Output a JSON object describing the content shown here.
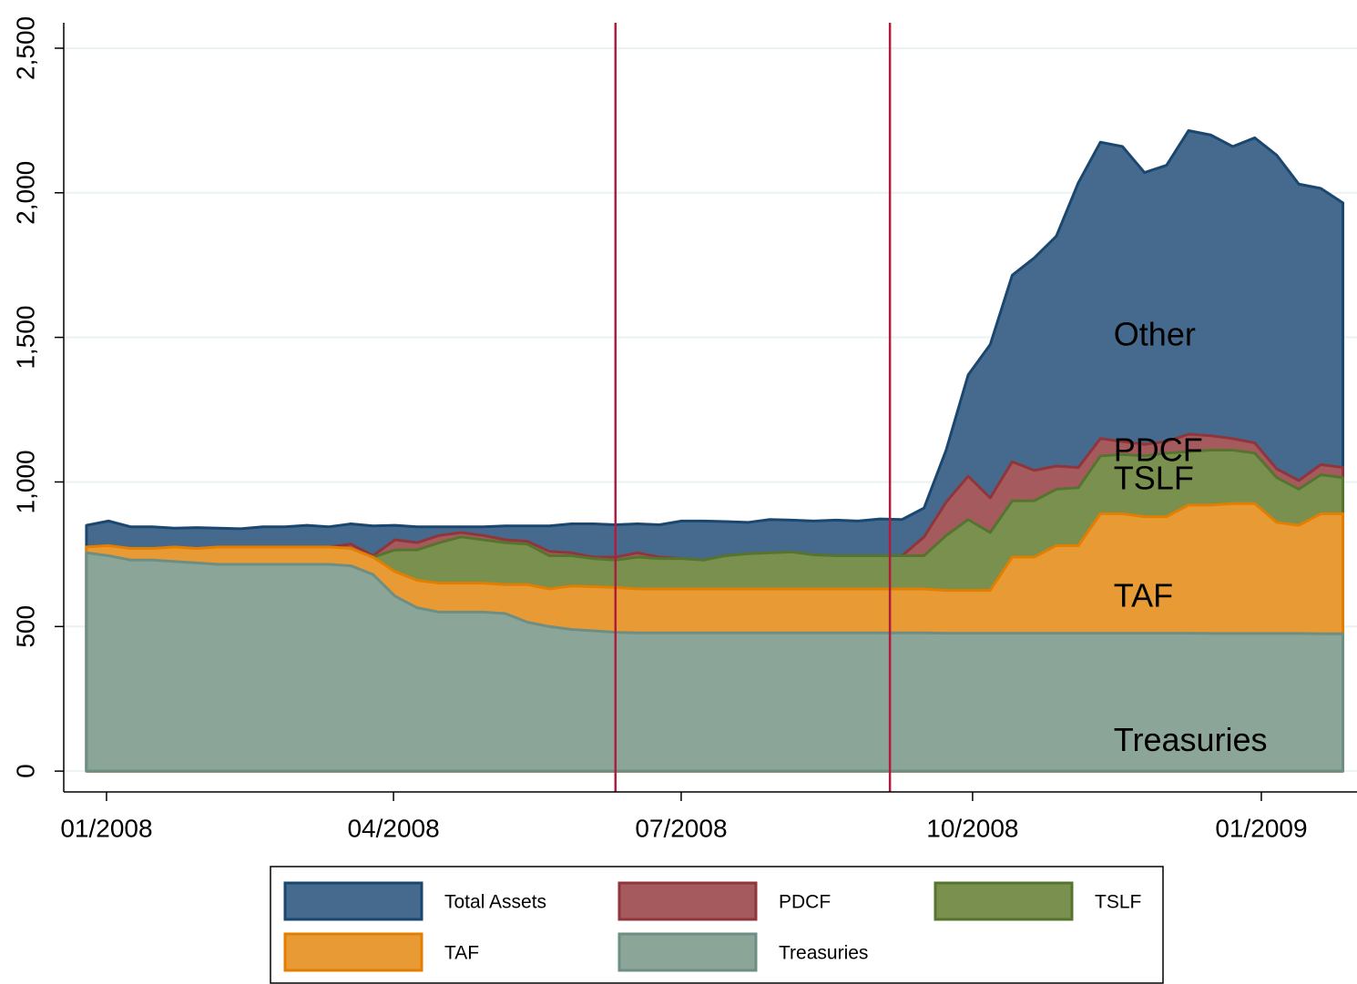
{
  "chart_data": {
    "type": "area",
    "x": [
      0,
      1,
      2,
      3,
      4,
      5,
      6,
      7,
      8,
      9,
      10,
      11,
      12,
      13,
      14,
      15,
      16,
      17,
      18,
      19,
      20,
      21,
      22,
      23,
      24,
      25,
      26,
      27,
      28,
      29,
      30,
      31,
      32,
      33,
      34,
      35,
      36,
      37,
      38,
      39,
      40,
      41,
      42,
      43,
      44,
      45,
      46,
      47,
      48,
      49,
      50,
      51,
      52,
      53,
      54,
      55,
      56,
      57
    ],
    "xlim": [
      -1.03,
      57.64
    ],
    "xticks": [
      {
        "value": 0.91,
        "label": "01/2008"
      },
      {
        "value": 13.93,
        "label": "04/2008"
      },
      {
        "value": 26.98,
        "label": "07/2008"
      },
      {
        "value": 40.2,
        "label": "10/2008"
      },
      {
        "value": 53.3,
        "label": "01/2009"
      }
    ],
    "ylim": [
      -72,
      2588
    ],
    "yticks": [
      0,
      500,
      {
        "value": 1000,
        "label": "1,000"
      },
      {
        "value": 1500,
        "label": "1,500"
      },
      {
        "value": 2000,
        "label": "2,000"
      },
      {
        "value": 2500,
        "label": "2,500"
      }
    ],
    "grid": true,
    "vlines": [
      24,
      36.45
    ],
    "vline_color": "#b01c3e",
    "series": [
      {
        "name": "Total Assets",
        "color": "#466a8e",
        "edge": "#1a476f",
        "values": [
          850,
          865,
          845,
          845,
          840,
          842,
          840,
          838,
          845,
          845,
          850,
          845,
          855,
          848,
          850,
          845,
          845,
          845,
          845,
          848,
          848,
          848,
          855,
          855,
          852,
          855,
          852,
          865,
          865,
          863,
          860,
          870,
          868,
          865,
          868,
          865,
          872,
          870,
          910,
          1110,
          1370,
          1475,
          1715,
          1775,
          1850,
          2035,
          2175,
          2160,
          2070,
          2095,
          2215,
          2200,
          2160,
          2190,
          2130,
          2030,
          2015,
          1965
        ]
      },
      {
        "name": "PDCF",
        "color": "#a55a5e",
        "edge": "#90353b",
        "values": [
          775,
          780,
          770,
          770,
          775,
          770,
          775,
          775,
          775,
          775,
          775,
          775,
          785,
          745,
          800,
          790,
          815,
          825,
          815,
          800,
          795,
          760,
          755,
          740,
          740,
          755,
          740,
          735,
          730,
          745,
          752,
          755,
          758,
          748,
          745,
          745,
          745,
          745,
          810,
          930,
          1020,
          945,
          1070,
          1040,
          1055,
          1050,
          1150,
          1140,
          1130,
          1140,
          1165,
          1160,
          1150,
          1135,
          1045,
          1005,
          1060,
          1050
        ]
      },
      {
        "name": "TSLF",
        "color": "#79904f",
        "edge": "#55752f",
        "values": [
          775,
          780,
          770,
          770,
          775,
          770,
          775,
          775,
          775,
          775,
          775,
          775,
          770,
          740,
          765,
          765,
          790,
          810,
          800,
          790,
          785,
          745,
          745,
          735,
          730,
          740,
          735,
          735,
          730,
          745,
          752,
          755,
          758,
          748,
          745,
          745,
          745,
          745,
          745,
          815,
          870,
          825,
          935,
          935,
          975,
          980,
          1090,
          1095,
          1090,
          1100,
          1105,
          1110,
          1110,
          1100,
          1015,
          975,
          1025,
          1015
        ]
      },
      {
        "name": "TAF",
        "color": "#e89a35",
        "edge": "#e37e00",
        "values": [
          775,
          780,
          770,
          770,
          775,
          770,
          775,
          775,
          775,
          775,
          775,
          775,
          770,
          740,
          690,
          660,
          650,
          650,
          650,
          645,
          645,
          630,
          640,
          638,
          635,
          630,
          630,
          630,
          630,
          630,
          630,
          630,
          630,
          630,
          630,
          630,
          630,
          630,
          630,
          625,
          625,
          625,
          740,
          740,
          780,
          780,
          890,
          890,
          880,
          880,
          920,
          920,
          925,
          925,
          860,
          850,
          890,
          890
        ]
      },
      {
        "name": "Treasuries",
        "color": "#8ba598",
        "edge": "#6e8e84",
        "values": [
          755,
          745,
          730,
          730,
          725,
          720,
          715,
          715,
          715,
          715,
          715,
          715,
          710,
          680,
          605,
          565,
          550,
          550,
          550,
          545,
          515,
          500,
          490,
          485,
          480,
          478,
          478,
          478,
          478,
          478,
          478,
          478,
          478,
          478,
          478,
          478,
          478,
          478,
          478,
          477,
          477,
          477,
          477,
          477,
          477,
          477,
          477,
          477,
          477,
          477,
          477,
          476,
          476,
          476,
          476,
          476,
          475,
          475
        ]
      }
    ],
    "annotations": [
      {
        "text": "Other",
        "x": 46.6,
        "y": 1502
      },
      {
        "text": "PDCF",
        "x": 46.6,
        "y": 1102
      },
      {
        "text": "TSLF",
        "x": 46.6,
        "y": 1004
      },
      {
        "text": "TAF",
        "x": 46.6,
        "y": 598
      },
      {
        "text": "Treasuries",
        "x": 46.6,
        "y": 100
      }
    ]
  }
}
